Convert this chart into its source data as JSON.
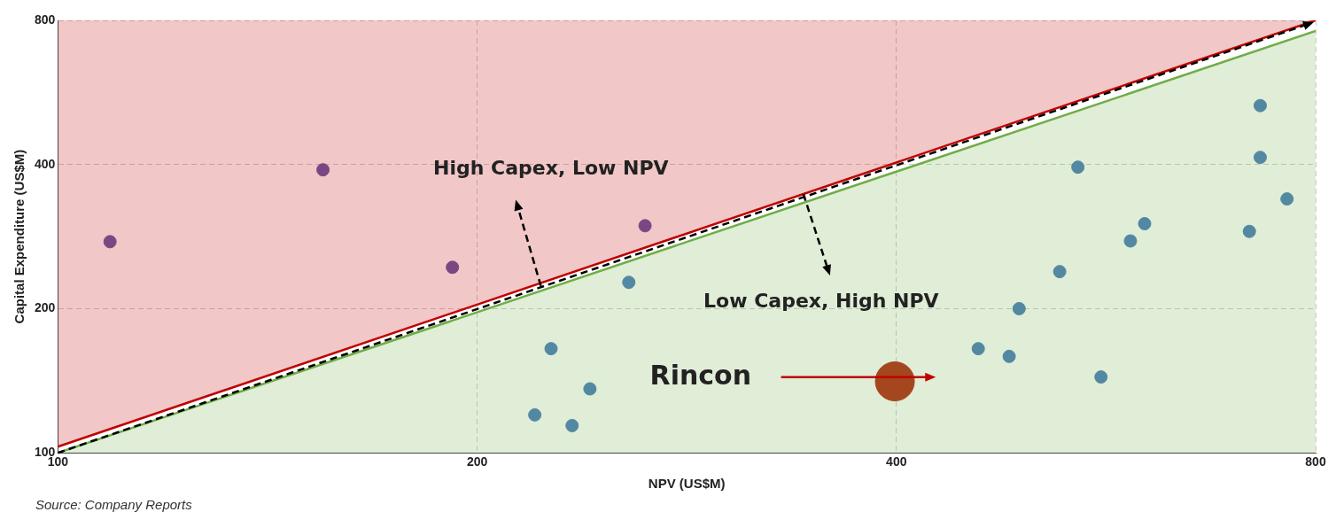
{
  "chart_data": {
    "type": "scatter",
    "xlabel": "NPV (US$M)",
    "ylabel": "Capital Expenditure (US$M)",
    "log": "xy",
    "xlim": [
      100,
      800
    ],
    "ylim": [
      100,
      800
    ],
    "xticks": [
      100,
      200,
      400,
      800
    ],
    "yticks": [
      100,
      200,
      400,
      800
    ],
    "grid": true,
    "legend": false,
    "marker": "circle",
    "series": [
      {
        "type": "line",
        "marker": "none",
        "color": "#c00000",
        "x": [
          100,
          800
        ],
        "values": [
          103,
          800
        ],
        "lower": [
          103,
          800
        ],
        "upper": [
          800,
          800
        ],
        "line_style": "solid"
      },
      {
        "type": "line",
        "marker": "none",
        "color": "#70ad47",
        "x": [
          100,
          800
        ],
        "values": [
          100,
          760
        ],
        "lower": [
          100,
          100
        ],
        "upper": [
          100,
          760
        ],
        "line_style": "solid"
      },
      {
        "color": "#6a5aa8",
        "x": [
          109,
          155,
          192,
          264
        ],
        "values": [
          276,
          390,
          244,
          298
        ]
      },
      {
        "color": "#4a7ebb",
        "x": [
          257,
          226,
          220,
          234,
          241,
          458,
          482,
          490,
          524,
          540,
          561,
          589,
          603,
          717,
          730,
          730,
          763
        ],
        "values": [
          227,
          165,
          120,
          114,
          136,
          165,
          159,
          200,
          239,
          395,
          144,
          277,
          301,
          290,
          531,
          414,
          339
        ]
      },
      {
        "type": "bubble",
        "color": "#b22a12",
        "x": [
          399
        ],
        "values": [
          141
        ],
        "sizes": [
          1
        ]
      }
    ],
    "annotations": [
      "High Capex, Low NPV",
      {
        "text": "Low Capex, High NPV",
        "x": 343,
        "y": 347
      },
      "Rincon",
      "Source: Company Reports"
    ]
  }
}
